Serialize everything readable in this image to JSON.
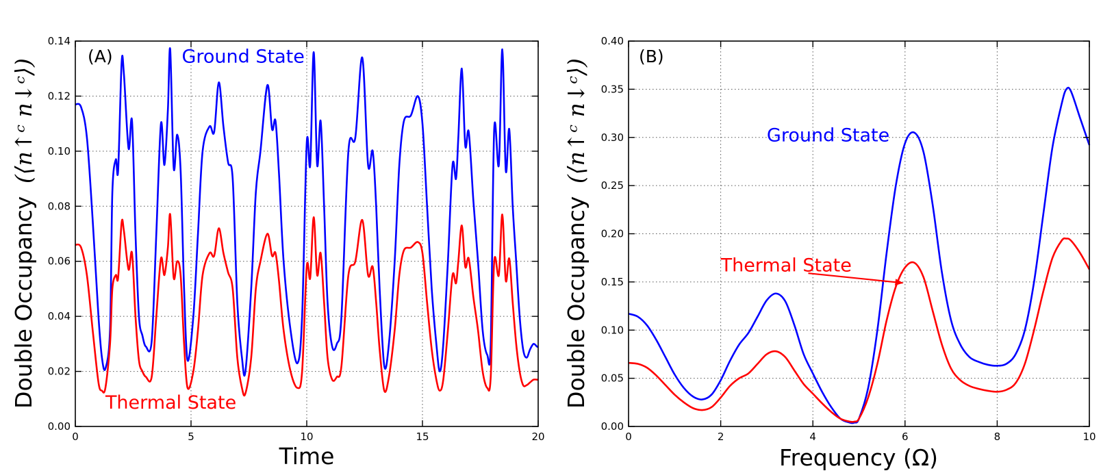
{
  "colors": {
    "ground": "#0000ff",
    "thermal": "#ff0000"
  },
  "chart_data": [
    {
      "type": "line",
      "panel_label": "(A)",
      "xlabel": "Time",
      "ylabel_text": "Double Occupancy",
      "ylabel_math": "(⟨n↑ᶜ n↓ᶜ⟩)",
      "xlim": [
        0,
        20
      ],
      "ylim": [
        0,
        0.14
      ],
      "xticks": [
        0,
        5,
        10,
        15,
        20
      ],
      "xtick_labels": [
        "0",
        "5",
        "10",
        "15",
        "20"
      ],
      "yticks": [
        0,
        0.02,
        0.04,
        0.06,
        0.08,
        0.1,
        0.12,
        0.14
      ],
      "ytick_labels": [
        "0.00",
        "0.02",
        "0.04",
        "0.06",
        "0.08",
        "0.10",
        "0.12",
        "0.14"
      ],
      "grid": true,
      "annotations": [
        {
          "text": "Ground State",
          "series": "Ground State",
          "x": 4.6,
          "y": 0.1322
        },
        {
          "text": "Thermal State",
          "series": "Thermal State",
          "x": 1.3,
          "y": 0.0065
        }
      ],
      "series": [
        {
          "name": "Ground State",
          "x": [
            0,
            0.25,
            0.5,
            0.75,
            1.0,
            1.15,
            1.3,
            1.5,
            1.6,
            1.75,
            1.85,
            2.0,
            2.1,
            2.3,
            2.45,
            2.6,
            2.75,
            2.9,
            3.05,
            3.3,
            3.5,
            3.7,
            3.85,
            4.0,
            4.1,
            4.25,
            4.4,
            4.55,
            4.7,
            4.85,
            5.1,
            5.3,
            5.5,
            5.8,
            6.0,
            6.2,
            6.4,
            6.6,
            6.8,
            7.0,
            7.2,
            7.35,
            7.6,
            7.8,
            8.0,
            8.3,
            8.5,
            8.65,
            8.8,
            9.0,
            9.3,
            9.6,
            9.8,
            10.0,
            10.15,
            10.3,
            10.45,
            10.6,
            10.75,
            10.9,
            11.1,
            11.3,
            11.5,
            11.8,
            12.1,
            12.4,
            12.65,
            12.85,
            13.0,
            13.15,
            13.35,
            13.55,
            13.8,
            14.0,
            14.2,
            14.5,
            14.8,
            15.0,
            15.2,
            15.4,
            15.6,
            15.75,
            15.9,
            16.1,
            16.3,
            16.45,
            16.55,
            16.7,
            16.85,
            17.0,
            17.2,
            17.4,
            17.6,
            17.8,
            17.95,
            18.1,
            18.3,
            18.45,
            18.6,
            18.75,
            18.9,
            19.05,
            19.2,
            19.35,
            19.5,
            19.65,
            19.8,
            19.95,
            20.0
          ],
          "y": [
            0.117,
            0.116,
            0.105,
            0.075,
            0.04,
            0.025,
            0.021,
            0.035,
            0.085,
            0.097,
            0.093,
            0.132,
            0.128,
            0.101,
            0.111,
            0.07,
            0.04,
            0.033,
            0.029,
            0.031,
            0.07,
            0.11,
            0.095,
            0.115,
            0.137,
            0.094,
            0.106,
            0.093,
            0.05,
            0.024,
            0.04,
            0.07,
            0.1,
            0.109,
            0.107,
            0.125,
            0.109,
            0.096,
            0.09,
            0.045,
            0.025,
            0.02,
            0.05,
            0.085,
            0.1,
            0.124,
            0.108,
            0.111,
            0.092,
            0.06,
            0.035,
            0.023,
            0.04,
            0.103,
            0.095,
            0.136,
            0.095,
            0.111,
            0.08,
            0.045,
            0.029,
            0.03,
            0.04,
            0.1,
            0.105,
            0.134,
            0.095,
            0.1,
            0.08,
            0.05,
            0.022,
            0.03,
            0.06,
            0.095,
            0.111,
            0.113,
            0.12,
            0.11,
            0.08,
            0.05,
            0.03,
            0.02,
            0.03,
            0.06,
            0.095,
            0.09,
            0.105,
            0.13,
            0.102,
            0.107,
            0.082,
            0.06,
            0.035,
            0.026,
            0.03,
            0.108,
            0.095,
            0.137,
            0.093,
            0.108,
            0.08,
            0.06,
            0.04,
            0.028,
            0.025,
            0.028,
            0.03,
            0.029,
            0.029
          ]
        },
        {
          "name": "Thermal State",
          "x": [
            0,
            0.25,
            0.5,
            0.75,
            1.0,
            1.15,
            1.3,
            1.5,
            1.6,
            1.75,
            1.85,
            2.0,
            2.1,
            2.3,
            2.45,
            2.6,
            2.75,
            2.9,
            3.05,
            3.3,
            3.5,
            3.7,
            3.85,
            4.0,
            4.1,
            4.25,
            4.4,
            4.55,
            4.7,
            4.85,
            5.1,
            5.3,
            5.5,
            5.8,
            6.0,
            6.2,
            6.4,
            6.6,
            6.8,
            7.0,
            7.2,
            7.35,
            7.6,
            7.8,
            8.0,
            8.3,
            8.5,
            8.65,
            8.8,
            9.0,
            9.3,
            9.6,
            9.8,
            10.0,
            10.15,
            10.3,
            10.45,
            10.6,
            10.75,
            10.9,
            11.1,
            11.3,
            11.5,
            11.8,
            12.1,
            12.4,
            12.65,
            12.85,
            13.0,
            13.15,
            13.35,
            13.55,
            13.8,
            14.0,
            14.2,
            14.5,
            14.8,
            15.0,
            15.2,
            15.4,
            15.6,
            15.75,
            15.9,
            16.1,
            16.3,
            16.45,
            16.55,
            16.7,
            16.85,
            17.0,
            17.2,
            17.4,
            17.6,
            17.8,
            17.95,
            18.1,
            18.3,
            18.45,
            18.6,
            18.75,
            18.9,
            19.05,
            19.2,
            19.35,
            19.5,
            19.65,
            19.8,
            19.95,
            20.0
          ],
          "y": [
            0.066,
            0.065,
            0.055,
            0.035,
            0.016,
            0.013,
            0.014,
            0.03,
            0.05,
            0.055,
            0.054,
            0.074,
            0.071,
            0.057,
            0.063,
            0.04,
            0.024,
            0.02,
            0.018,
            0.018,
            0.04,
            0.061,
            0.055,
            0.065,
            0.077,
            0.054,
            0.06,
            0.055,
            0.03,
            0.014,
            0.02,
            0.035,
            0.055,
            0.063,
            0.062,
            0.072,
            0.063,
            0.056,
            0.05,
            0.025,
            0.014,
            0.012,
            0.025,
            0.05,
            0.06,
            0.07,
            0.062,
            0.063,
            0.053,
            0.035,
            0.02,
            0.014,
            0.02,
            0.058,
            0.054,
            0.076,
            0.055,
            0.063,
            0.045,
            0.025,
            0.017,
            0.018,
            0.022,
            0.055,
            0.06,
            0.075,
            0.055,
            0.058,
            0.045,
            0.028,
            0.013,
            0.018,
            0.035,
            0.055,
            0.064,
            0.065,
            0.067,
            0.063,
            0.045,
            0.028,
            0.017,
            0.013,
            0.017,
            0.035,
            0.055,
            0.052,
            0.06,
            0.073,
            0.058,
            0.061,
            0.047,
            0.035,
            0.02,
            0.014,
            0.018,
            0.06,
            0.055,
            0.077,
            0.053,
            0.061,
            0.045,
            0.03,
            0.02,
            0.015,
            0.015,
            0.016,
            0.017,
            0.017,
            0.017
          ]
        }
      ]
    },
    {
      "type": "line",
      "panel_label": "(B)",
      "xlabel": "Frequency (Ω)",
      "ylabel_text": "Double Occupancy",
      "ylabel_math": "(⟨n↑ᶜ n↓ᶜ⟩)",
      "xlim": [
        0,
        10
      ],
      "ylim": [
        0,
        0.4
      ],
      "xticks": [
        0,
        2,
        4,
        6,
        8,
        10
      ],
      "xtick_labels": [
        "0",
        "2",
        "4",
        "6",
        "8",
        "10"
      ],
      "yticks": [
        0,
        0.05,
        0.1,
        0.15,
        0.2,
        0.25,
        0.3,
        0.35,
        0.4
      ],
      "ytick_labels": [
        "0.00",
        "0.05",
        "0.10",
        "0.15",
        "0.20",
        "0.25",
        "0.30",
        "0.35",
        "0.40"
      ],
      "grid": true,
      "annotations": [
        {
          "text": "Ground State",
          "series": "Ground State",
          "x": 3.0,
          "y": 0.296
        },
        {
          "text": "Thermal State",
          "series": "Thermal State",
          "x": 2.0,
          "y": 0.161,
          "arrow_to": [
            5.95,
            0.149
          ],
          "arrow_from": [
            3.9,
            0.159
          ]
        }
      ],
      "series": [
        {
          "name": "Ground State",
          "x": [
            0,
            0.2,
            0.4,
            0.6,
            0.8,
            1.0,
            1.2,
            1.4,
            1.6,
            1.8,
            2.0,
            2.2,
            2.4,
            2.6,
            2.8,
            3.0,
            3.2,
            3.4,
            3.6,
            3.8,
            4.0,
            4.2,
            4.4,
            4.6,
            4.8,
            4.9,
            5.0,
            5.2,
            5.4,
            5.6,
            5.8,
            6.0,
            6.2,
            6.4,
            6.6,
            6.8,
            7.0,
            7.2,
            7.4,
            7.6,
            7.8,
            8.0,
            8.2,
            8.4,
            8.6,
            8.8,
            9.0,
            9.2,
            9.4,
            9.5,
            9.6,
            9.8,
            10.0
          ],
          "y": [
            0.117,
            0.114,
            0.105,
            0.09,
            0.072,
            0.054,
            0.04,
            0.031,
            0.028,
            0.033,
            0.048,
            0.068,
            0.085,
            0.097,
            0.114,
            0.131,
            0.138,
            0.13,
            0.105,
            0.075,
            0.055,
            0.036,
            0.02,
            0.008,
            0.004,
            0.004,
            0.008,
            0.04,
            0.1,
            0.18,
            0.25,
            0.294,
            0.305,
            0.285,
            0.23,
            0.16,
            0.11,
            0.085,
            0.072,
            0.067,
            0.064,
            0.063,
            0.065,
            0.075,
            0.1,
            0.15,
            0.22,
            0.29,
            0.335,
            0.35,
            0.348,
            0.32,
            0.292
          ]
        },
        {
          "name": "Thermal State",
          "x": [
            0,
            0.2,
            0.4,
            0.6,
            0.8,
            1.0,
            1.2,
            1.4,
            1.6,
            1.8,
            2.0,
            2.2,
            2.4,
            2.6,
            2.8,
            3.0,
            3.2,
            3.4,
            3.6,
            3.8,
            4.0,
            4.2,
            4.4,
            4.6,
            4.8,
            4.9,
            5.0,
            5.2,
            5.4,
            5.6,
            5.8,
            6.0,
            6.2,
            6.4,
            6.6,
            6.8,
            7.0,
            7.2,
            7.4,
            7.6,
            7.8,
            8.0,
            8.2,
            8.4,
            8.6,
            8.8,
            9.0,
            9.2,
            9.4,
            9.5,
            9.6,
            9.8,
            10.0
          ],
          "y": [
            0.066,
            0.065,
            0.061,
            0.053,
            0.043,
            0.033,
            0.025,
            0.019,
            0.017,
            0.02,
            0.03,
            0.042,
            0.05,
            0.055,
            0.065,
            0.075,
            0.078,
            0.072,
            0.058,
            0.044,
            0.034,
            0.024,
            0.015,
            0.008,
            0.005,
            0.005,
            0.008,
            0.03,
            0.065,
            0.11,
            0.145,
            0.165,
            0.17,
            0.155,
            0.12,
            0.085,
            0.06,
            0.048,
            0.042,
            0.039,
            0.037,
            0.036,
            0.038,
            0.045,
            0.065,
            0.1,
            0.14,
            0.175,
            0.193,
            0.195,
            0.193,
            0.18,
            0.163
          ]
        }
      ]
    }
  ]
}
